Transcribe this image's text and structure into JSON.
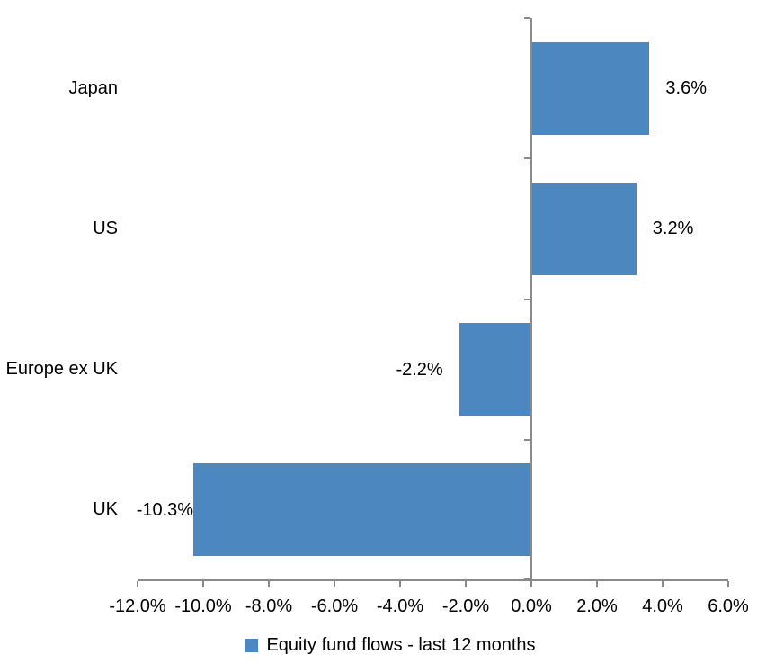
{
  "chart_data": {
    "type": "bar",
    "orientation": "horizontal",
    "categories": [
      "Japan",
      "US",
      "Europe ex UK",
      "UK"
    ],
    "values": [
      3.6,
      3.2,
      -2.2,
      -10.3
    ],
    "data_labels": [
      "3.6%",
      "3.2%",
      "-2.2%",
      "-10.3%"
    ],
    "title": "",
    "xlabel": "",
    "ylabel": "",
    "xlim": [
      -12,
      6
    ],
    "x_ticks": [
      -12,
      -10,
      -8,
      -6,
      -4,
      -2,
      0,
      2,
      4,
      6
    ],
    "x_tick_labels": [
      "-12.0%",
      "-10.0%",
      "-8.0%",
      "-6.0%",
      "-4.0%",
      "-2.0%",
      "0.0%",
      "2.0%",
      "4.0%",
      "6.0%"
    ],
    "grid": false,
    "legend": {
      "position": "bottom",
      "entries": [
        {
          "label": "Equity fund flows - last 12 months",
          "color": "#4d87bf"
        }
      ]
    },
    "colors": {
      "bar": "#4d87bf",
      "axis": "#8a8a8a",
      "text": "#000000",
      "background": "#ffffff"
    }
  }
}
